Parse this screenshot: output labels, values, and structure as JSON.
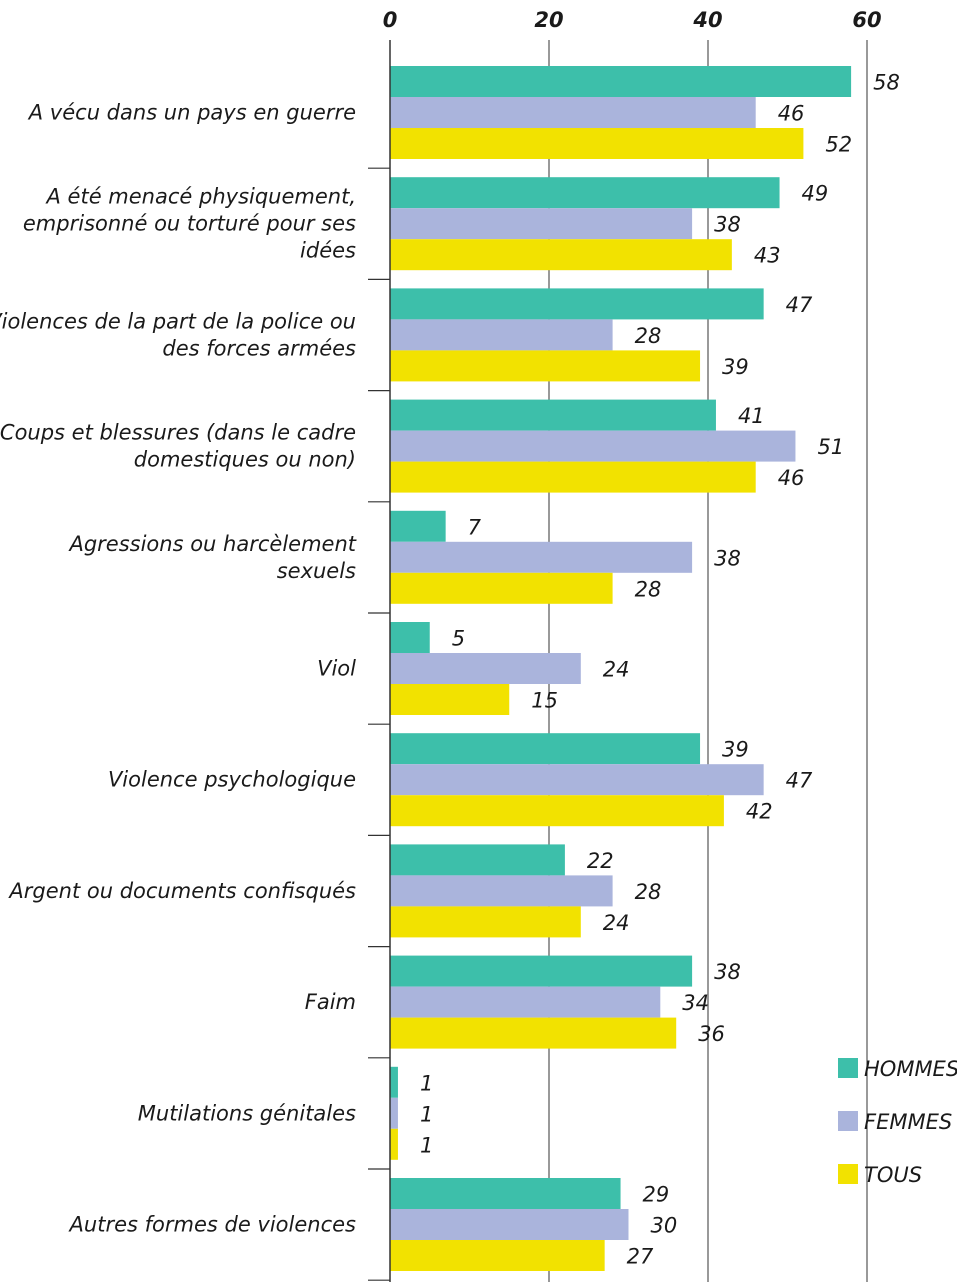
{
  "chart_data": {
    "type": "bar",
    "orientation": "horizontal",
    "categories": [
      [
        "A vécu dans un pays en guerre"
      ],
      [
        "A été menacé physiquement,",
        "emprisonné ou torturé pour ses",
        "idées"
      ],
      [
        "Violences de la part de la police ou",
        "des forces armées"
      ],
      [
        "Coups et blessures (dans le cadre",
        "domestiques ou non)"
      ],
      [
        "Agressions ou harcèlement",
        "sexuels"
      ],
      [
        "Viol"
      ],
      [
        "Violence psychologique"
      ],
      [
        "Argent ou documents confisqués"
      ],
      [
        "Faim"
      ],
      [
        "Mutilations génitales"
      ],
      [
        "Autres formes de violences"
      ]
    ],
    "series": [
      {
        "name": "HOMMES",
        "color": "#3dbfaa",
        "values": [
          58,
          49,
          47,
          41,
          7,
          5,
          39,
          22,
          38,
          1,
          29
        ]
      },
      {
        "name": "FEMMES",
        "color": "#aab4dc",
        "values": [
          46,
          38,
          28,
          51,
          38,
          24,
          47,
          28,
          34,
          1,
          30
        ]
      },
      {
        "name": "TOUS",
        "color": "#f2e200",
        "values": [
          52,
          43,
          39,
          46,
          28,
          15,
          42,
          24,
          36,
          1,
          27
        ]
      }
    ],
    "xlim": [
      0,
      60
    ],
    "xticks": [
      "0",
      "20",
      "40",
      "60"
    ],
    "grid": true,
    "legend": "bottom-right"
  }
}
